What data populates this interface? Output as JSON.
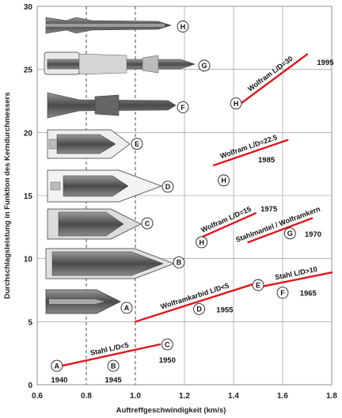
{
  "chart_data": {
    "type": "line",
    "xlabel": "Auftreffgeschwindigkeit (km/s)",
    "ylabel": "Durchschlagsleistung in Funktion des Kerndurchmessers",
    "xlim": [
      0.6,
      1.8
    ],
    "ylim": [
      0,
      30
    ],
    "x_ticks": [
      "0.6",
      "0.8",
      "1.0",
      "1.2",
      "1.4",
      "1.6",
      "1.8"
    ],
    "y_ticks": [
      "0",
      "5",
      "10",
      "15",
      "20",
      "25",
      "30"
    ],
    "grid": true,
    "series": [
      {
        "name": "Stahl L/D<5",
        "x": [
          0.7,
          1.1
        ],
        "y": [
          1.5,
          3.2
        ]
      },
      {
        "name": "Wolframkarbid L/D<5",
        "x": [
          1.0,
          1.5
        ],
        "y": [
          5.0,
          8.1
        ]
      },
      {
        "name": "Stahl L/D>10",
        "x": [
          1.52,
          1.8
        ],
        "y": [
          7.8,
          8.9
        ]
      },
      {
        "name": "Stahlmantel / Wolframkern",
        "x": [
          1.46,
          1.72
        ],
        "y": [
          11.3,
          13.2
        ]
      },
      {
        "name": "Wolfram L/D=15",
        "x": [
          1.27,
          1.49
        ],
        "y": [
          11.7,
          13.6
        ]
      },
      {
        "name": "Wolfram L/D=22.5",
        "x": [
          1.32,
          1.62
        ],
        "y": [
          17.4,
          19.4
        ]
      },
      {
        "name": "Wolfram L/D=30",
        "x": [
          1.43,
          1.7
        ],
        "y": [
          22.3,
          26.2
        ]
      }
    ],
    "annotations": [
      {
        "letter": "A",
        "x": 0.68,
        "y": 1.5,
        "year": "1940",
        "year_x": 0.69,
        "year_y": 0.45
      },
      {
        "letter": "B",
        "x": 0.91,
        "y": 1.5,
        "year": "1945",
        "year_x": 0.91,
        "year_y": 0.45
      },
      {
        "letter": "C",
        "x": 1.13,
        "y": 3.2,
        "year": "1950",
        "year_x": 1.13,
        "year_y": 2.0
      },
      {
        "letter": "D",
        "x": 1.26,
        "y": 6.0,
        "year": "1955",
        "year_x": 1.33,
        "year_y": 6.0
      },
      {
        "letter": "E",
        "x": 1.5,
        "y": 7.9,
        "year": "",
        "year_x": 0,
        "year_y": 0
      },
      {
        "letter": "F",
        "x": 1.6,
        "y": 7.3,
        "year": "1965",
        "year_x": 1.67,
        "year_y": 7.3
      },
      {
        "letter": "G",
        "x": 1.63,
        "y": 12.0,
        "year": "1970",
        "year_x": 1.69,
        "year_y": 12.0
      },
      {
        "letter": "H",
        "x": 1.27,
        "y": 11.3,
        "year": "1975",
        "year_x": 1.51,
        "year_y": 14.0
      },
      {
        "letter": "H",
        "x": 1.36,
        "y": 16.2,
        "year": "1985",
        "year_x": 1.5,
        "year_y": 17.9
      },
      {
        "letter": "H",
        "x": 1.41,
        "y": 22.3,
        "year": "1995",
        "year_x": 1.74,
        "year_y": 25.6
      }
    ],
    "projectile_labels": [
      {
        "letter": "H",
        "y": 28.4
      },
      {
        "letter": "G",
        "y": 25.3
      },
      {
        "letter": "F",
        "y": 22.0
      },
      {
        "letter": "E",
        "y": 19.1
      },
      {
        "letter": "D",
        "y": 15.7
      },
      {
        "letter": "C",
        "y": 12.8
      },
      {
        "letter": "B",
        "y": 9.7
      },
      {
        "letter": "A",
        "y": 6.1
      }
    ]
  }
}
